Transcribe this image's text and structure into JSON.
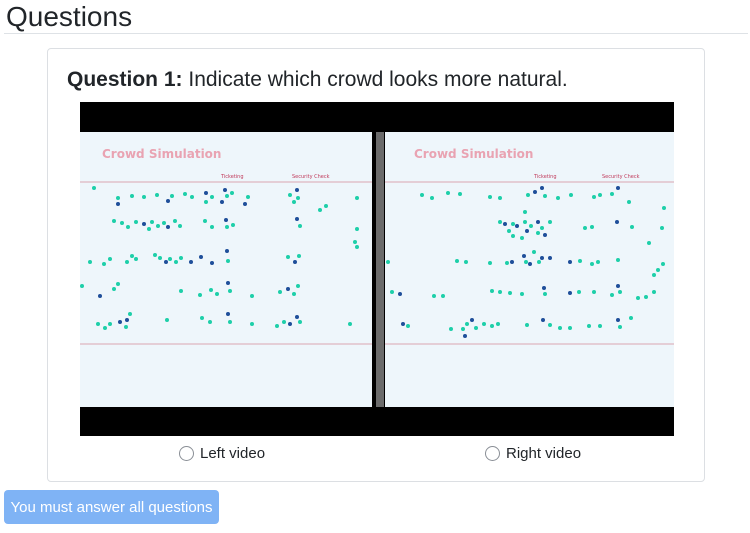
{
  "page": {
    "title": "Questions"
  },
  "question": {
    "label": "Question 1:",
    "text": "Indicate which crowd looks more natural."
  },
  "video": {
    "left_panel": {
      "title": "Crowd Simulation",
      "ticketing_label": "Ticketing",
      "security_label": "Security Check"
    },
    "right_panel": {
      "title": "Crowd Simulation",
      "ticketing_label": "Ticketing",
      "security_label": "Security Check"
    },
    "colors": {
      "background": "#eef6fb",
      "agent_primary": "#1ecfa9",
      "agent_secondary": "#1f4f9a",
      "title_color": "#e9a3b2",
      "line_color": "#d9a6b2",
      "letterbox": "#000000",
      "divider": "#6b6b6b"
    }
  },
  "options": {
    "left": {
      "label": "Left video",
      "selected": false
    },
    "right": {
      "label": "Right video",
      "selected": false
    }
  },
  "submit": {
    "label": "You must answer all questions",
    "color": "#7fb3f5",
    "disabled": true
  }
}
